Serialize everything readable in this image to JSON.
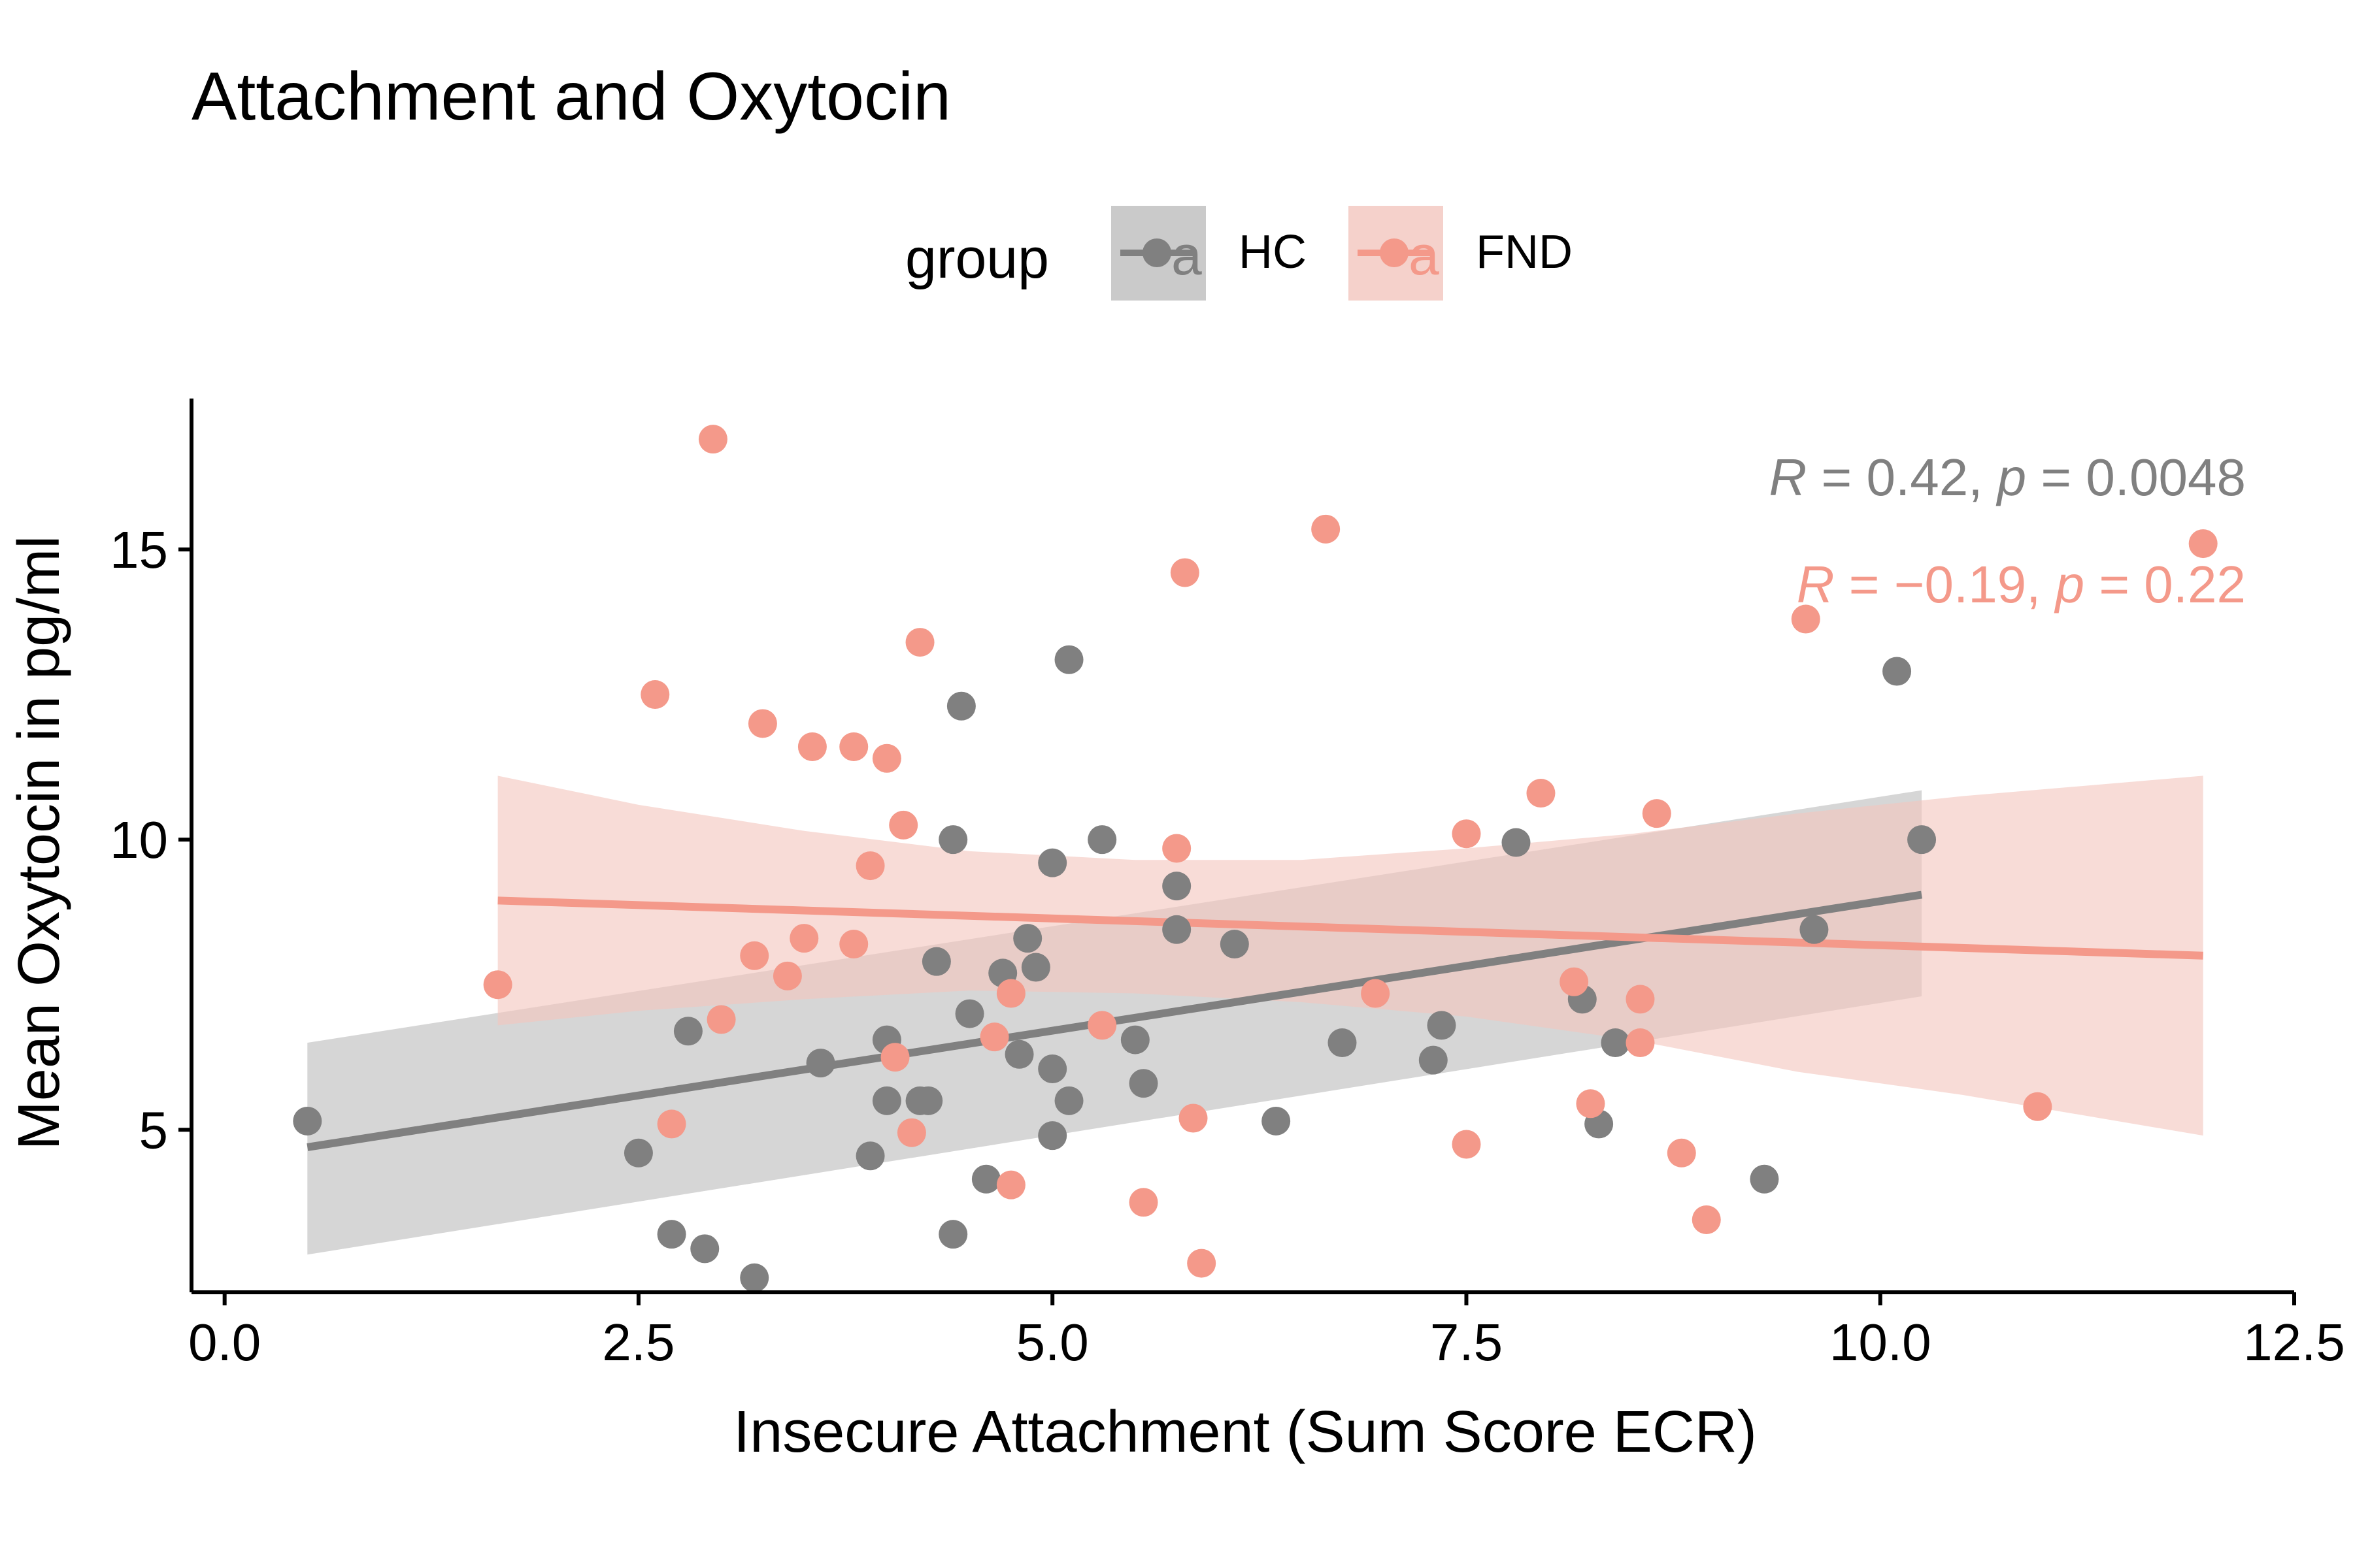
{
  "chart_data": {
    "type": "scatter",
    "title": "Attachment and Oxytocin",
    "xlabel": "Insecure Attachment (Sum Score ECR)",
    "ylabel": "Mean Oxytocin in pg/ml",
    "xlim": [
      -0.2,
      12.5
    ],
    "ylim": [
      2.2,
      17.6
    ],
    "x_ticks": [
      0.0,
      2.5,
      5.0,
      7.5,
      10.0,
      12.5
    ],
    "x_tick_labels": [
      "0.0",
      "2.5",
      "5.0",
      "7.5",
      "10.0",
      "12.5"
    ],
    "y_ticks": [
      5,
      10,
      15
    ],
    "y_tick_labels": [
      "5",
      "10",
      "15"
    ],
    "grid": false,
    "legend": {
      "title": "group",
      "position": "top",
      "key_glyph": "a"
    },
    "series": [
      {
        "name": "HC",
        "color": "#808080",
        "band_color": "#bdbdbd",
        "points": [
          [
            0.5,
            5.15
          ],
          [
            2.5,
            4.6
          ],
          [
            2.7,
            3.2
          ],
          [
            2.8,
            6.7
          ],
          [
            2.9,
            2.95
          ],
          [
            3.2,
            2.45
          ],
          [
            3.6,
            6.15
          ],
          [
            3.9,
            4.55
          ],
          [
            4.0,
            6.55
          ],
          [
            4.0,
            5.5
          ],
          [
            4.2,
            5.5
          ],
          [
            4.25,
            5.5
          ],
          [
            4.3,
            7.9
          ],
          [
            4.4,
            3.2
          ],
          [
            4.4,
            10.0
          ],
          [
            4.45,
            12.3
          ],
          [
            4.5,
            7.0
          ],
          [
            4.6,
            4.15
          ],
          [
            4.7,
            7.7
          ],
          [
            4.8,
            6.3
          ],
          [
            4.85,
            8.3
          ],
          [
            4.9,
            7.8
          ],
          [
            5.0,
            9.6
          ],
          [
            5.0,
            6.05
          ],
          [
            5.0,
            4.9
          ],
          [
            5.1,
            5.5
          ],
          [
            5.1,
            13.1
          ],
          [
            5.3,
            10.0
          ],
          [
            5.5,
            6.55
          ],
          [
            5.55,
            5.8
          ],
          [
            5.75,
            9.2
          ],
          [
            5.75,
            8.45
          ],
          [
            6.1,
            8.2
          ],
          [
            6.35,
            5.15
          ],
          [
            6.75,
            6.5
          ],
          [
            7.3,
            6.2
          ],
          [
            7.35,
            6.8
          ],
          [
            7.8,
            9.95
          ],
          [
            8.2,
            7.25
          ],
          [
            8.3,
            5.1
          ],
          [
            8.4,
            6.5
          ],
          [
            9.3,
            4.15
          ],
          [
            9.6,
            8.45
          ],
          [
            10.1,
            12.9
          ],
          [
            10.25,
            10.0
          ]
        ],
        "fit": {
          "x": [
            0.5,
            10.25
          ],
          "y": [
            4.7,
            9.05
          ]
        },
        "ci": {
          "x": [
            0.5,
            10.25
          ],
          "lower": [
            2.85,
            7.3
          ],
          "upper": [
            6.5,
            10.85
          ]
        },
        "stat": {
          "R": "0.42",
          "p": "0.0048"
        }
      },
      {
        "name": "FND",
        "color": "#F4998A",
        "band_color": "#F3C6BE",
        "points": [
          [
            1.65,
            7.5
          ],
          [
            2.6,
            12.5
          ],
          [
            2.7,
            5.1
          ],
          [
            2.95,
            16.9
          ],
          [
            3.0,
            6.9
          ],
          [
            3.2,
            8.0
          ],
          [
            3.25,
            12.0
          ],
          [
            3.4,
            7.65
          ],
          [
            3.5,
            8.3
          ],
          [
            3.55,
            11.6
          ],
          [
            3.8,
            11.6
          ],
          [
            3.8,
            8.2
          ],
          [
            3.9,
            9.55
          ],
          [
            4.0,
            11.4
          ],
          [
            4.05,
            6.25
          ],
          [
            4.1,
            10.25
          ],
          [
            4.15,
            4.95
          ],
          [
            4.2,
            13.4
          ],
          [
            4.65,
            6.6
          ],
          [
            4.75,
            4.05
          ],
          [
            4.75,
            7.35
          ],
          [
            5.3,
            6.8
          ],
          [
            5.55,
            3.75
          ],
          [
            5.75,
            9.85
          ],
          [
            5.8,
            14.6
          ],
          [
            5.85,
            5.2
          ],
          [
            5.9,
            2.7
          ],
          [
            6.65,
            15.35
          ],
          [
            6.95,
            7.35
          ],
          [
            7.5,
            4.75
          ],
          [
            7.5,
            10.1
          ],
          [
            7.95,
            10.8
          ],
          [
            8.15,
            7.55
          ],
          [
            8.25,
            5.45
          ],
          [
            8.55,
            7.25
          ],
          [
            8.55,
            6.5
          ],
          [
            8.65,
            10.45
          ],
          [
            8.8,
            4.6
          ],
          [
            8.95,
            3.45
          ],
          [
            9.55,
            13.8
          ],
          [
            10.95,
            5.4
          ],
          [
            11.95,
            15.1
          ]
        ],
        "fit": {
          "x": [
            1.65,
            11.95
          ],
          "y": [
            8.95,
            8.0
          ]
        },
        "ci": {
          "x": [
            1.65,
            2.5,
            3.5,
            4.5,
            5.5,
            6.5,
            7.5,
            8.5,
            9.5,
            10.5,
            11.95
          ],
          "lower": [
            6.8,
            7.05,
            7.25,
            7.4,
            7.35,
            7.2,
            6.95,
            6.55,
            6.0,
            5.6,
            4.9
          ],
          "upper": [
            11.1,
            10.6,
            10.15,
            9.8,
            9.65,
            9.65,
            9.85,
            10.1,
            10.45,
            10.75,
            11.1
          ]
        },
        "stat": {
          "R": "−0.19",
          "p": "0.22"
        }
      }
    ]
  }
}
